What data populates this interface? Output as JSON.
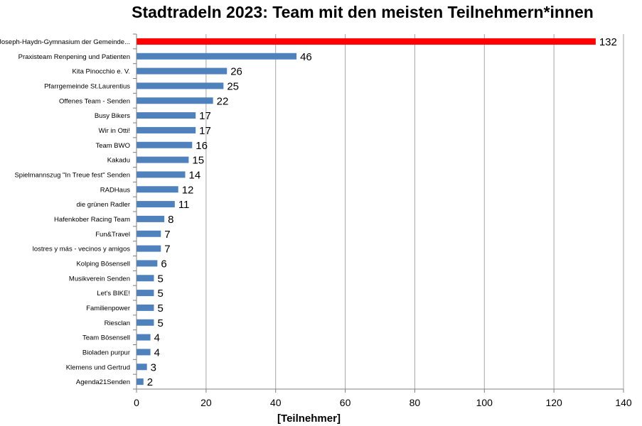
{
  "chart_data": {
    "type": "bar",
    "orientation": "horizontal",
    "title": "Stadtradeln 2023: Team mit den meisten Teilnehmern*innen",
    "xlabel": "[Teilnehmer]",
    "ylabel": "",
    "xlim": [
      0,
      140
    ],
    "xticks": [
      0,
      20,
      40,
      60,
      80,
      100,
      120,
      140
    ],
    "grid": true,
    "categories": [
      "Joseph-Haydn-Gymnasium der Gemeinde...",
      "Praxisteam Renpening und Patienten",
      "Kita Pinocchio e. V.",
      "Pfarrgemeinde St.Laurentius",
      "Offenes Team - Senden",
      "Busy Bikers",
      "Wir in Otti!",
      "Team BWO",
      "Kakadu",
      "Spielmannszug \"In Treue fest\" Senden",
      "RADHaus",
      "die grünen Radler",
      "Hafenkober Racing Team",
      "Fun&Travel",
      "lostres y más - vecinos y amigos",
      "Kolping Bösensell",
      "Musikverein Senden",
      "Let's BIKE!",
      "Familienpower",
      "Riesclan",
      "Team Bösensell",
      "Bioladen purpur",
      "Klemens und Gertrud",
      "Agenda21Senden"
    ],
    "values": [
      132,
      46,
      26,
      25,
      22,
      17,
      17,
      16,
      15,
      14,
      12,
      11,
      8,
      7,
      7,
      6,
      5,
      5,
      5,
      5,
      4,
      4,
      3,
      2
    ],
    "colors": {
      "highlight": "#ff0000",
      "bar": "#4f81bd",
      "grid": "#a6a6a6",
      "axis": "#7f7f7f"
    }
  }
}
